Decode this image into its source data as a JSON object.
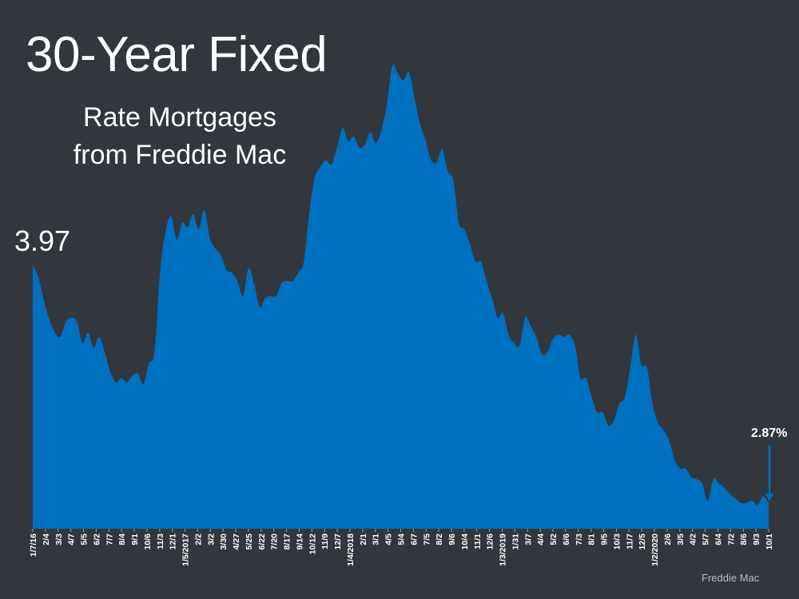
{
  "title": "30-Year Fixed",
  "subtitle_line1": "Rate Mortgages",
  "subtitle_line2": "from Freddie Mac",
  "source": "Freddie Mac",
  "colors": {
    "background": "#32373e",
    "area": "#0070c0",
    "text": "#ffffff"
  },
  "chart_data": {
    "type": "area",
    "title": "30-Year Fixed Rate Mortgages from Freddie Mac",
    "xlabel": "",
    "ylabel": "",
    "grid": false,
    "tick_labels": [
      "1/7/16",
      "2/4",
      "3/3",
      "4/7",
      "5/5",
      "6/2",
      "7/7",
      "8/4",
      "9/1",
      "10/6",
      "11/3",
      "12/1",
      "1/5/2017",
      "2/2",
      "3/2",
      "3/30",
      "4/27",
      "5/25",
      "6/22",
      "7/20",
      "8/17",
      "9/14",
      "10/12",
      "11/9",
      "12/7",
      "1/4/2018",
      "2/1",
      "3/1",
      "4/5",
      "5/4",
      "6/7",
      "7/5",
      "8/2",
      "9/6",
      "10/4",
      "11/1",
      "12/6",
      "1/3/2019",
      "1/31",
      "3/7",
      "4/4",
      "5/2",
      "6/6",
      "7/3",
      "8/1",
      "9/5",
      "10/3",
      "11/7",
      "12/5",
      "1/2/2020",
      "2/6",
      "3/5",
      "4/2",
      "5/7",
      "6/4",
      "7/2",
      "8/6",
      "9/3",
      "10/1"
    ],
    "series": [
      {
        "values": [
          3.97,
          3.92,
          3.81,
          3.72,
          3.66,
          3.64,
          3.71,
          3.73,
          3.71,
          3.61,
          3.66,
          3.59,
          3.64,
          3.57,
          3.48,
          3.43,
          3.45,
          3.43,
          3.46,
          3.47,
          3.42,
          3.52,
          3.57,
          3.94,
          4.13,
          4.2,
          4.09,
          4.17,
          4.15,
          4.21,
          4.14,
          4.23,
          4.1,
          4.05,
          4.02,
          3.95,
          3.94,
          3.9,
          3.83,
          3.96,
          3.89,
          3.78,
          3.82,
          3.83,
          3.83,
          3.89,
          3.9,
          3.9,
          3.94,
          3.99,
          4.22,
          4.38,
          4.43,
          4.46,
          4.44,
          4.52,
          4.61,
          4.55,
          4.57,
          4.52,
          4.53,
          4.59,
          4.54,
          4.6,
          4.72,
          4.9,
          4.86,
          4.83,
          4.87,
          4.75,
          4.63,
          4.55,
          4.46,
          4.45,
          4.51,
          4.41,
          4.37,
          4.17,
          4.14,
          4.07,
          3.99,
          3.99,
          3.9,
          3.82,
          3.73,
          3.75,
          3.65,
          3.61,
          3.6,
          3.73,
          3.69,
          3.64,
          3.56,
          3.57,
          3.63,
          3.65,
          3.64,
          3.65,
          3.6,
          3.45,
          3.45,
          3.36,
          3.29,
          3.29,
          3.23,
          3.25,
          3.33,
          3.36,
          3.5,
          3.65,
          3.51,
          3.5,
          3.33,
          3.24,
          3.21,
          3.16,
          3.07,
          3.03,
          3.03,
          2.99,
          2.98,
          2.96,
          2.88,
          2.98,
          2.96,
          2.94,
          2.91,
          2.89,
          2.87,
          2.87,
          2.88,
          2.86,
          2.9,
          2.87
        ]
      }
    ],
    "ylim": [
      2.75,
      5.0
    ],
    "annotations": [
      {
        "text": "3.97",
        "value": 3.97,
        "at": "start"
      },
      {
        "text": "2.87%",
        "value": 2.87,
        "at": "end",
        "arrow": "down"
      }
    ],
    "start_label": "3.97",
    "end_label": "2.87%"
  }
}
